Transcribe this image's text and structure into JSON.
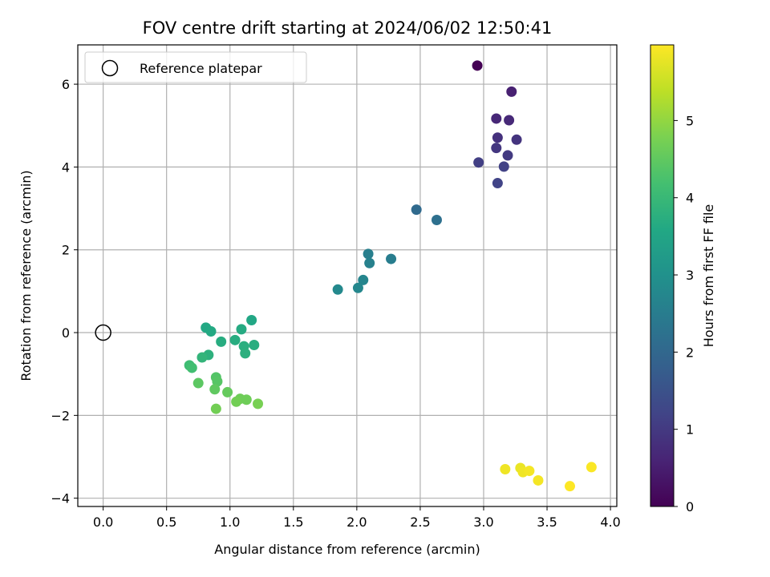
{
  "chart_data": {
    "type": "scatter",
    "title": "FOV centre drift starting at 2024/06/02 12:50:41",
    "xlabel": "Angular distance from reference (arcmin)",
    "ylabel": "Rotation from reference (arcmin)",
    "xlim": [
      -0.2,
      4.05
    ],
    "ylim": [
      -4.2,
      6.95
    ],
    "xticks": [
      0.0,
      0.5,
      1.0,
      1.5,
      2.0,
      2.5,
      3.0,
      3.5,
      4.0
    ],
    "xtick_labels": [
      "0.0",
      "0.5",
      "1.0",
      "1.5",
      "2.0",
      "2.5",
      "3.0",
      "3.5",
      "4.0"
    ],
    "yticks": [
      -4,
      -2,
      0,
      2,
      4,
      6
    ],
    "ytick_labels": [
      "−4",
      "−2",
      "0",
      "2",
      "4",
      "6"
    ],
    "grid": true,
    "legend": {
      "position": "upper-left",
      "label": "Reference platepar"
    },
    "reference_point": {
      "x": 0.0,
      "y": 0.0
    },
    "colorbar": {
      "label": "Hours from first FF file",
      "range": [
        0,
        5.98
      ],
      "ticks": [
        0,
        1,
        2,
        3,
        4,
        5
      ],
      "tick_labels": [
        "0",
        "1",
        "2",
        "3",
        "4",
        "5"
      ],
      "colormap": "viridis"
    },
    "points": [
      {
        "x": 2.95,
        "y": 6.45,
        "c": 0.0
      },
      {
        "x": 3.22,
        "y": 5.82,
        "c": 0.55
      },
      {
        "x": 3.1,
        "y": 5.17,
        "c": 0.65
      },
      {
        "x": 3.2,
        "y": 5.13,
        "c": 0.7
      },
      {
        "x": 3.11,
        "y": 4.71,
        "c": 0.85
      },
      {
        "x": 3.26,
        "y": 4.66,
        "c": 0.9
      },
      {
        "x": 3.1,
        "y": 4.46,
        "c": 0.95
      },
      {
        "x": 3.19,
        "y": 4.28,
        "c": 1.0
      },
      {
        "x": 2.96,
        "y": 4.11,
        "c": 1.1
      },
      {
        "x": 3.16,
        "y": 4.01,
        "c": 1.15
      },
      {
        "x": 3.11,
        "y": 3.61,
        "c": 1.2
      },
      {
        "x": 2.47,
        "y": 2.97,
        "c": 2.05
      },
      {
        "x": 2.63,
        "y": 2.72,
        "c": 2.2
      },
      {
        "x": 2.09,
        "y": 1.9,
        "c": 2.55
      },
      {
        "x": 2.27,
        "y": 1.78,
        "c": 2.5
      },
      {
        "x": 2.1,
        "y": 1.68,
        "c": 2.6
      },
      {
        "x": 2.05,
        "y": 1.27,
        "c": 2.7
      },
      {
        "x": 2.01,
        "y": 1.08,
        "c": 2.75
      },
      {
        "x": 1.85,
        "y": 1.04,
        "c": 2.8
      },
      {
        "x": 1.17,
        "y": 0.3,
        "c": 3.55
      },
      {
        "x": 0.81,
        "y": 0.12,
        "c": 3.6
      },
      {
        "x": 1.09,
        "y": 0.08,
        "c": 3.65
      },
      {
        "x": 0.85,
        "y": 0.03,
        "c": 3.62
      },
      {
        "x": 1.04,
        "y": -0.18,
        "c": 3.7
      },
      {
        "x": 0.93,
        "y": -0.22,
        "c": 3.7
      },
      {
        "x": 1.19,
        "y": -0.3,
        "c": 3.72
      },
      {
        "x": 1.11,
        "y": -0.33,
        "c": 3.75
      },
      {
        "x": 1.12,
        "y": -0.5,
        "c": 3.78
      },
      {
        "x": 0.83,
        "y": -0.54,
        "c": 3.8
      },
      {
        "x": 0.78,
        "y": -0.6,
        "c": 3.9
      },
      {
        "x": 0.68,
        "y": -0.79,
        "c": 4.1
      },
      {
        "x": 0.7,
        "y": -0.85,
        "c": 4.15
      },
      {
        "x": 0.89,
        "y": -1.08,
        "c": 4.35
      },
      {
        "x": 0.9,
        "y": -1.18,
        "c": 4.4
      },
      {
        "x": 0.75,
        "y": -1.22,
        "c": 4.45
      },
      {
        "x": 0.88,
        "y": -1.37,
        "c": 4.5
      },
      {
        "x": 0.98,
        "y": -1.44,
        "c": 4.55
      },
      {
        "x": 1.08,
        "y": -1.6,
        "c": 4.65
      },
      {
        "x": 1.13,
        "y": -1.62,
        "c": 4.65
      },
      {
        "x": 1.05,
        "y": -1.67,
        "c": 4.7
      },
      {
        "x": 1.22,
        "y": -1.72,
        "c": 4.75
      },
      {
        "x": 0.89,
        "y": -1.84,
        "c": 4.7
      },
      {
        "x": 3.29,
        "y": -3.27,
        "c": 5.8
      },
      {
        "x": 3.17,
        "y": -3.3,
        "c": 5.85
      },
      {
        "x": 3.31,
        "y": -3.37,
        "c": 5.85
      },
      {
        "x": 3.36,
        "y": -3.34,
        "c": 5.9
      },
      {
        "x": 3.43,
        "y": -3.57,
        "c": 5.9
      },
      {
        "x": 3.85,
        "y": -3.25,
        "c": 5.95
      },
      {
        "x": 3.68,
        "y": -3.71,
        "c": 5.98
      }
    ]
  }
}
